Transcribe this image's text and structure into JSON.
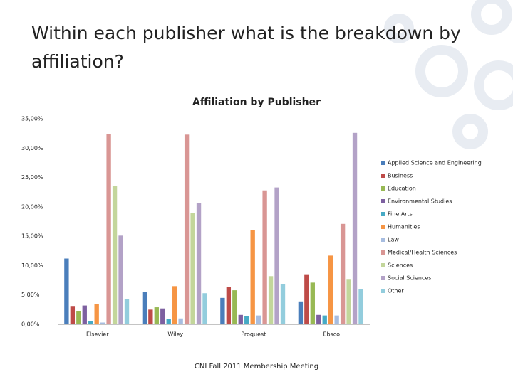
{
  "title": "Within each publisher what is the breakdown by affiliation?",
  "footer": "CNI Fall 2011 Membership Meeting",
  "chart_data": {
    "type": "bar",
    "title": "Affiliation by Publisher",
    "categories": [
      "Elsevier",
      "Wiley",
      "Proquest",
      "Ebsco"
    ],
    "ylim": [
      0,
      35
    ],
    "yticks": [
      {
        "value": 0,
        "label": "0,00%"
      },
      {
        "value": 5,
        "label": "5,00%"
      },
      {
        "value": 10,
        "label": "10,00%"
      },
      {
        "value": 15,
        "label": "15,00%"
      },
      {
        "value": 20,
        "label": "20,00%"
      },
      {
        "value": 25,
        "label": "25,00%"
      },
      {
        "value": 30,
        "label": "30,00%"
      },
      {
        "value": 35,
        "label": "35,00%"
      }
    ],
    "grid": false,
    "legend": "right",
    "series": [
      {
        "name": "Applied Science and Engineering",
        "color": "#4a7ebb",
        "values": [
          11.2,
          5.5,
          4.5,
          3.9
        ]
      },
      {
        "name": "Business",
        "color": "#be4b48",
        "values": [
          3.0,
          2.5,
          6.4,
          8.4
        ]
      },
      {
        "name": "Education",
        "color": "#98b954",
        "values": [
          2.2,
          2.9,
          5.8,
          7.1
        ]
      },
      {
        "name": "Environmental Studies",
        "color": "#7d60a0",
        "values": [
          3.2,
          2.7,
          1.6,
          1.6
        ]
      },
      {
        "name": "Fine Arts",
        "color": "#46aac5",
        "values": [
          0.5,
          0.9,
          1.4,
          1.5
        ]
      },
      {
        "name": "Humanities",
        "color": "#f69544",
        "values": [
          3.4,
          6.5,
          16.0,
          11.7
        ]
      },
      {
        "name": "Law",
        "color": "#a7bde0",
        "values": [
          0.3,
          1.0,
          1.5,
          1.5
        ]
      },
      {
        "name": "Medical/Health Sciences",
        "color": "#d99694",
        "values": [
          32.4,
          32.3,
          22.8,
          17.1
        ]
      },
      {
        "name": "Sciences",
        "color": "#c3d69b",
        "values": [
          23.6,
          18.9,
          8.2,
          7.6
        ]
      },
      {
        "name": "Social Sciences",
        "color": "#b3a2c7",
        "values": [
          15.1,
          20.6,
          23.3,
          32.6
        ]
      },
      {
        "name": "Other",
        "color": "#93cddd",
        "values": [
          4.3,
          5.3,
          6.8,
          6.0
        ]
      }
    ]
  }
}
